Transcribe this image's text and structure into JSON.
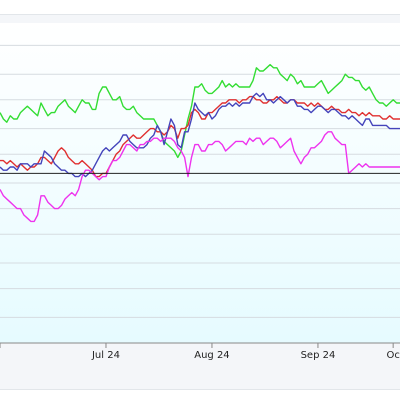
{
  "chart_data": {
    "type": "line",
    "title": "",
    "xlabel": "",
    "ylabel": "",
    "x_tick_labels": [
      "24",
      "Jul 24",
      "Aug 24",
      "Sep 24",
      "Oc"
    ],
    "x_tick_positions": [
      0,
      31,
      62,
      93,
      115
    ],
    "x_range": [
      0,
      117
    ],
    "y_range": [
      0,
      100
    ],
    "baseline_value": 53,
    "grid": true,
    "gridline_values": [
      93,
      84,
      76,
      67,
      59,
      50,
      42,
      34,
      25,
      17,
      8
    ],
    "colors": {
      "green": "#33dd33",
      "red": "#e03030",
      "blue": "#4444bb",
      "magenta": "#ee33ee",
      "baseline": "#222222",
      "gradient_top": "#ffffff",
      "gradient_bottom": "#e6fbff"
    },
    "series": [
      {
        "color": "green",
        "values": [
          72,
          70,
          69,
          71,
          70,
          70,
          72,
          73,
          74,
          73,
          72,
          71,
          75,
          73,
          71,
          72,
          72,
          74,
          75,
          76,
          74,
          73,
          72,
          74,
          76,
          75,
          75,
          73,
          73,
          78,
          80,
          80,
          78,
          76,
          76,
          77,
          74,
          73,
          73,
          74,
          72,
          71,
          70,
          70,
          70,
          70,
          68,
          66,
          63,
          62,
          61,
          60,
          58,
          60,
          65,
          70,
          74,
          80,
          80,
          81,
          79,
          78,
          78,
          79,
          80,
          82,
          80,
          81,
          80,
          81,
          80,
          80,
          80,
          80,
          82,
          86,
          85,
          85,
          86,
          87,
          86,
          86,
          84,
          83,
          82,
          84,
          83,
          81,
          82,
          80,
          80,
          80,
          80,
          81,
          82,
          80,
          78,
          79,
          80,
          81,
          82,
          84,
          83,
          83,
          82,
          82,
          80,
          79,
          80,
          78,
          76,
          75,
          75,
          74,
          75,
          76,
          75,
          75
        ]
      },
      {
        "color": "red",
        "values": [
          57,
          57,
          56,
          57,
          56,
          55,
          56,
          55,
          54,
          55,
          55,
          56,
          58,
          58,
          57,
          56,
          58,
          60,
          61,
          60,
          58,
          57,
          56,
          56,
          57,
          56,
          55,
          54,
          52,
          52,
          53,
          53,
          55,
          57,
          59,
          60,
          62,
          63,
          64,
          65,
          64,
          64,
          65,
          66,
          67,
          67,
          66,
          66,
          65,
          66,
          68,
          67,
          64,
          67,
          67,
          68,
          72,
          73,
          72,
          70,
          70,
          72,
          72,
          73,
          74,
          75,
          75,
          76,
          76,
          76,
          75,
          76,
          76,
          77,
          77,
          76,
          76,
          75,
          75,
          76,
          76,
          77,
          76,
          75,
          75,
          76,
          76,
          75,
          75,
          75,
          74,
          75,
          74,
          75,
          74,
          73,
          73,
          74,
          73,
          73,
          72,
          72,
          73,
          72,
          72,
          71,
          72,
          71,
          72,
          71,
          71,
          71,
          70,
          70,
          71,
          70,
          70,
          70
        ]
      },
      {
        "color": "blue",
        "values": [
          55,
          54,
          54,
          55,
          55,
          54,
          56,
          56,
          56,
          55,
          56,
          56,
          56,
          60,
          59,
          58,
          56,
          55,
          54,
          54,
          53,
          53,
          52,
          52,
          53,
          52,
          53,
          54,
          56,
          58,
          60,
          61,
          60,
          61,
          62,
          63,
          65,
          65,
          63,
          62,
          61,
          61,
          61,
          62,
          64,
          65,
          68,
          66,
          62,
          66,
          70,
          68,
          62,
          61,
          66,
          66,
          70,
          75,
          73,
          72,
          71,
          72,
          70,
          71,
          73,
          74,
          74,
          75,
          74,
          75,
          74,
          75,
          75,
          75,
          77,
          78,
          77,
          78,
          76,
          76,
          75,
          76,
          77,
          76,
          75,
          76,
          76,
          74,
          74,
          73,
          73,
          72,
          73,
          74,
          74,
          73,
          72,
          73,
          73,
          72,
          71,
          71,
          70,
          71,
          70,
          69,
          68,
          70,
          70,
          68,
          68,
          68,
          68,
          68,
          67,
          67,
          67,
          67
        ]
      },
      {
        "color": "magenta",
        "values": [
          48,
          46,
          45,
          44,
          43,
          42,
          42,
          40,
          39,
          38,
          38,
          40,
          46,
          46,
          44,
          43,
          42,
          42,
          43,
          45,
          46,
          47,
          46,
          48,
          52,
          54,
          54,
          53,
          52,
          51,
          52,
          52,
          55,
          57,
          57,
          58,
          60,
          62,
          62,
          61,
          60,
          62,
          62,
          63,
          63,
          64,
          64,
          63,
          64,
          64,
          64,
          63,
          61,
          60,
          58,
          52,
          58,
          62,
          62,
          60,
          60,
          62,
          62,
          63,
          63,
          62,
          60,
          61,
          62,
          63,
          63,
          63,
          62,
          64,
          63,
          64,
          64,
          62,
          63,
          64,
          64,
          63,
          61,
          62,
          63,
          64,
          60,
          58,
          56,
          58,
          59,
          61,
          61,
          62,
          63,
          65,
          66,
          66,
          64,
          63,
          62,
          62,
          53,
          54,
          55,
          56,
          55,
          56,
          55,
          55,
          55,
          55,
          55,
          55,
          55,
          55,
          55,
          55
        ]
      }
    ]
  }
}
